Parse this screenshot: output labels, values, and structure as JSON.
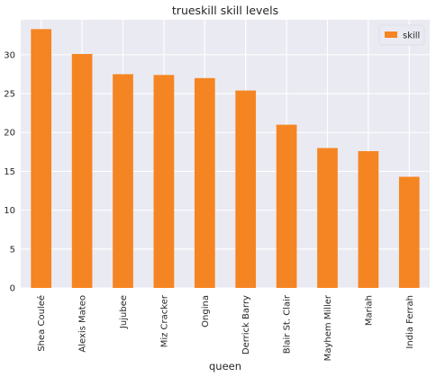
{
  "chart_data": {
    "type": "bar",
    "title": "trueskill skill levels",
    "xlabel": "queen",
    "ylabel": "",
    "categories": [
      "Shea Couleé",
      "Alexis Mateo",
      "Jujubee",
      "Miz Cracker",
      "Ongina",
      "Derrick Barry",
      "Blair St. Clair",
      "Mayhem Miller",
      "Mariah",
      "India Ferrah"
    ],
    "series": [
      {
        "name": "skill",
        "values": [
          33.3,
          30.1,
          27.5,
          27.4,
          27.0,
          25.4,
          21.0,
          18.0,
          17.6,
          14.3
        ]
      }
    ],
    "ylim": [
      0,
      34.5
    ],
    "yticks": [
      0,
      5,
      10,
      15,
      20,
      25,
      30
    ],
    "grid": true,
    "legend_position": "top-right",
    "colors": {
      "bar": "#f58522",
      "plot_background": "#eaeaf2",
      "grid": "#ffffff"
    }
  }
}
